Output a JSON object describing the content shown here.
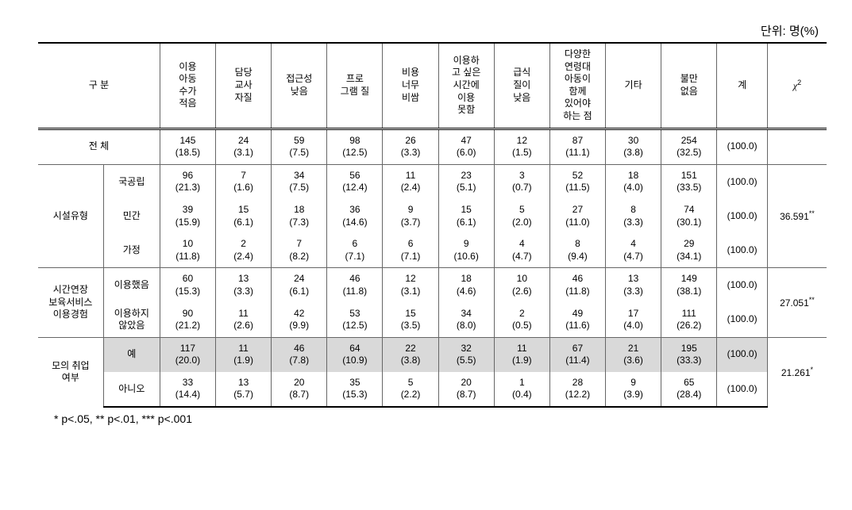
{
  "unit_label": "단위: 명(%)",
  "footnote": "* p<.05, ** p<.01, *** p<.001",
  "headers": {
    "category": "구 분",
    "c1": "이용\n아동\n수가\n적음",
    "c2": "담당\n교사\n자질",
    "c3": "접근성\n낮음",
    "c4": "프로\n그램 질",
    "c5": "비용\n너무\n비쌈",
    "c6": "이용하\n고 싶은\n시간에\n이용\n못함",
    "c7": "급식\n질이\n낮음",
    "c8": "다양한\n연령대\n아동이\n함께\n있어야\n하는 점",
    "c9": "기타",
    "c10": "불만\n없음",
    "total": "계",
    "chi2": "χ"
  },
  "rows": {
    "all": {
      "label": "전 체",
      "v": [
        "145\n(18.5)",
        "24\n(3.1)",
        "59\n(7.5)",
        "98\n(12.5)",
        "26\n(3.3)",
        "47\n(6.0)",
        "12\n(1.5)",
        "87\n(11.1)",
        "30\n(3.8)",
        "254\n(32.5)",
        "(100.0)"
      ]
    },
    "g1": {
      "label": "시설유형",
      "chi2": "36.591",
      "sig": "**",
      "sub": [
        {
          "label": "국공립",
          "v": [
            "96\n(21.3)",
            "7\n(1.6)",
            "34\n(7.5)",
            "56\n(12.4)",
            "11\n(2.4)",
            "23\n(5.1)",
            "3\n(0.7)",
            "52\n(11.5)",
            "18\n(4.0)",
            "151\n(33.5)",
            "(100.0)"
          ]
        },
        {
          "label": "민간",
          "v": [
            "39\n(15.9)",
            "15\n(6.1)",
            "18\n(7.3)",
            "36\n(14.6)",
            "9\n(3.7)",
            "15\n(6.1)",
            "5\n(2.0)",
            "27\n(11.0)",
            "8\n(3.3)",
            "74\n(30.1)",
            "(100.0)"
          ]
        },
        {
          "label": "가정",
          "v": [
            "10\n(11.8)",
            "2\n(2.4)",
            "7\n(8.2)",
            "6\n(7.1)",
            "6\n(7.1)",
            "9\n(10.6)",
            "4\n(4.7)",
            "8\n(9.4)",
            "4\n(4.7)",
            "29\n(34.1)",
            "(100.0)"
          ]
        }
      ]
    },
    "g2": {
      "label": "시간연장\n보육서비스\n이용경험",
      "chi2": "27.051",
      "sig": "**",
      "sub": [
        {
          "label": "이용했음",
          "v": [
            "60\n(15.3)",
            "13\n(3.3)",
            "24\n(6.1)",
            "46\n(11.8)",
            "12\n(3.1)",
            "18\n(4.6)",
            "10\n(2.6)",
            "46\n(11.8)",
            "13\n(3.3)",
            "149\n(38.1)",
            "(100.0)"
          ]
        },
        {
          "label": "이용하지\n않았음",
          "v": [
            "90\n(21.2)",
            "11\n(2.6)",
            "42\n(9.9)",
            "53\n(12.5)",
            "15\n(3.5)",
            "34\n(8.0)",
            "2\n(0.5)",
            "49\n(11.6)",
            "17\n(4.0)",
            "111\n(26.2)",
            "(100.0)"
          ]
        }
      ]
    },
    "g3": {
      "label": "모의 취업\n여부",
      "chi2": "21.261",
      "sig": "*",
      "sub": [
        {
          "label": "예",
          "highlight": true,
          "v": [
            "117\n(20.0)",
            "11\n(1.9)",
            "46\n(7.8)",
            "64\n(10.9)",
            "22\n(3.8)",
            "32\n(5.5)",
            "11\n(1.9)",
            "67\n(11.4)",
            "21\n(3.6)",
            "195\n(33.3)",
            "(100.0)"
          ]
        },
        {
          "label": "아니오",
          "v": [
            "33\n(14.4)",
            "13\n(5.7)",
            "20\n(8.7)",
            "35\n(15.3)",
            "5\n(2.2)",
            "20\n(8.7)",
            "1\n(0.4)",
            "28\n(12.2)",
            "9\n(3.9)",
            "65\n(28.4)",
            "(100.0)"
          ]
        }
      ]
    }
  }
}
